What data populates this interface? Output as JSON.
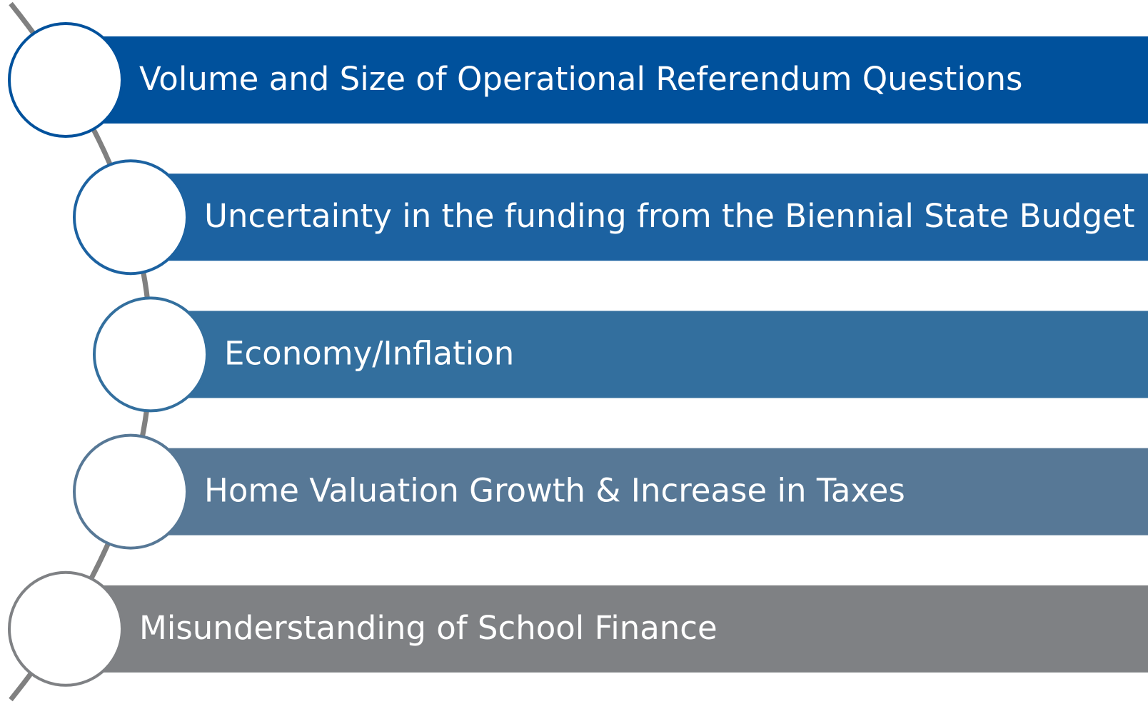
{
  "items": [
    {
      "label": "Volume and Size of Operational Referendum Questions"
    },
    {
      "label": "Uncertainty in the funding from the Biennial State Budget"
    },
    {
      "label": "Economy/Inflation"
    },
    {
      "label": "Home Valuation Growth & Increase in Taxes"
    },
    {
      "label": "Misunderstanding of School Finance"
    }
  ]
}
